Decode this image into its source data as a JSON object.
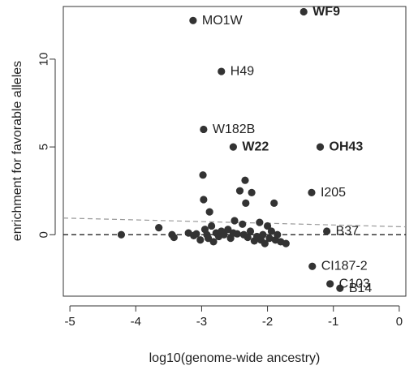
{
  "chart_data": {
    "type": "scatter",
    "xlabel": "log10(genome-wide ancestry)",
    "ylabel": "enrichment for favorable alleles",
    "xlim": [
      -5.1,
      0.1
    ],
    "ylim": [
      -3.5,
      13.0
    ],
    "xticks": [
      -5,
      -4,
      -3,
      -2,
      -1,
      0
    ],
    "yticks": [
      0,
      5,
      10
    ],
    "grid": false,
    "colors": {
      "points": "#333333",
      "axis": "#333333",
      "zero_line": "#111111",
      "trend_line": "#999999"
    },
    "reference_lines": [
      {
        "kind": "horizontal",
        "y": 0,
        "style": "dashed"
      },
      {
        "kind": "trend",
        "x": [
          -5.1,
          0.1
        ],
        "y": [
          0.95,
          0.45
        ],
        "style": "dashed"
      }
    ],
    "points": [
      {
        "x": -3.13,
        "y": 12.2,
        "label": "MO1W",
        "bold": false
      },
      {
        "x": -1.45,
        "y": 12.7,
        "label": "WF9",
        "bold": true
      },
      {
        "x": -2.7,
        "y": 9.3,
        "label": "H49",
        "bold": false
      },
      {
        "x": -2.97,
        "y": 6.0,
        "label": "W182B",
        "bold": false
      },
      {
        "x": -2.52,
        "y": 5.0,
        "label": "W22",
        "bold": true
      },
      {
        "x": -1.2,
        "y": 5.0,
        "label": "OH43",
        "bold": true
      },
      {
        "x": -1.33,
        "y": 2.4,
        "label": "I205",
        "bold": false
      },
      {
        "x": -1.1,
        "y": 0.2,
        "label": "B37",
        "bold": false
      },
      {
        "x": -1.32,
        "y": -1.8,
        "label": "CI187-2",
        "bold": false
      },
      {
        "x": -1.05,
        "y": -2.8,
        "label": "C103",
        "bold": false
      },
      {
        "x": -0.9,
        "y": -3.05,
        "label": "B14",
        "bold": false
      },
      {
        "x": -4.22,
        "y": 0.0
      },
      {
        "x": -3.65,
        "y": 0.4
      },
      {
        "x": -3.45,
        "y": 0.0
      },
      {
        "x": -3.42,
        "y": -0.15
      },
      {
        "x": -3.2,
        "y": 0.1
      },
      {
        "x": -3.12,
        "y": -0.05
      },
      {
        "x": -3.08,
        "y": 0.05
      },
      {
        "x": -3.02,
        "y": -0.3
      },
      {
        "x": -2.98,
        "y": 3.4
      },
      {
        "x": -2.97,
        "y": 2.0
      },
      {
        "x": -2.95,
        "y": 0.3
      },
      {
        "x": -2.92,
        "y": 0.0
      },
      {
        "x": -2.9,
        "y": -0.2
      },
      {
        "x": -2.88,
        "y": 1.3
      },
      {
        "x": -2.85,
        "y": 0.5
      },
      {
        "x": -2.82,
        "y": -0.4
      },
      {
        "x": -2.78,
        "y": 0.1
      },
      {
        "x": -2.74,
        "y": -0.1
      },
      {
        "x": -2.7,
        "y": 0.2
      },
      {
        "x": -2.66,
        "y": 0.0
      },
      {
        "x": -2.6,
        "y": 0.3
      },
      {
        "x": -2.56,
        "y": -0.2
      },
      {
        "x": -2.52,
        "y": 0.1
      },
      {
        "x": -2.5,
        "y": 0.8
      },
      {
        "x": -2.46,
        "y": 0.05
      },
      {
        "x": -2.42,
        "y": 2.5
      },
      {
        "x": -2.38,
        "y": 0.6
      },
      {
        "x": -2.36,
        "y": 0.0
      },
      {
        "x": -2.34,
        "y": 3.1
      },
      {
        "x": -2.33,
        "y": 1.8
      },
      {
        "x": -2.3,
        "y": -0.15
      },
      {
        "x": -2.26,
        "y": 0.2
      },
      {
        "x": -2.24,
        "y": 2.4
      },
      {
        "x": -2.2,
        "y": -0.35
      },
      {
        "x": -2.16,
        "y": -0.1
      },
      {
        "x": -2.12,
        "y": 0.7
      },
      {
        "x": -2.1,
        "y": -0.3
      },
      {
        "x": -2.07,
        "y": 0.0
      },
      {
        "x": -2.04,
        "y": -0.5
      },
      {
        "x": -2.0,
        "y": 0.5
      },
      {
        "x": -1.97,
        "y": -0.2
      },
      {
        "x": -1.94,
        "y": 0.2
      },
      {
        "x": -1.9,
        "y": 1.8
      },
      {
        "x": -1.88,
        "y": -0.3
      },
      {
        "x": -1.85,
        "y": 0.0
      },
      {
        "x": -1.8,
        "y": -0.4
      },
      {
        "x": -1.72,
        "y": -0.5
      }
    ]
  }
}
